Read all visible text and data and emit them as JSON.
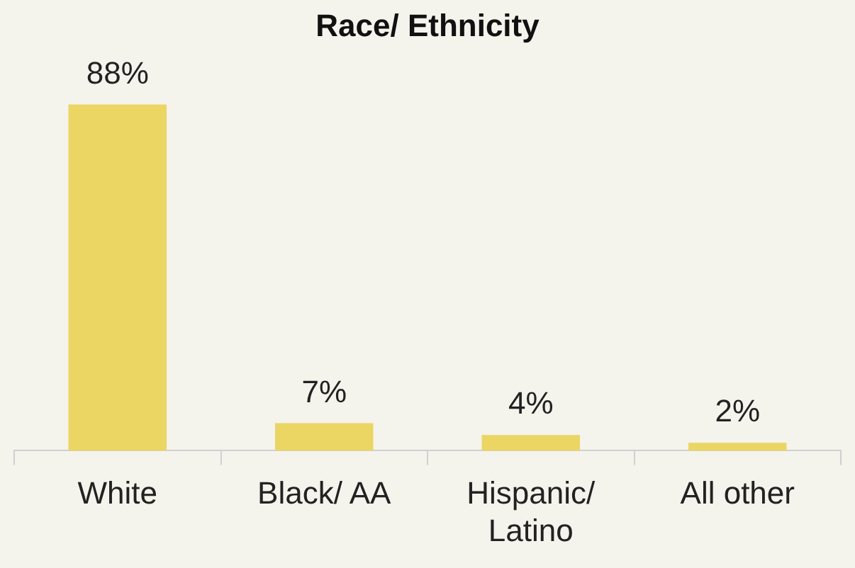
{
  "chart_data": {
    "type": "bar",
    "title": "Race/ Ethnicity",
    "categories": [
      "White",
      "Black/ AA",
      "Hispanic/ Latino",
      "All other"
    ],
    "values": [
      88,
      7,
      4,
      2
    ],
    "value_labels": [
      "88%",
      "7%",
      "4%",
      "2%"
    ],
    "color": "#ebd563",
    "tick_labels": "x",
    "grid": false,
    "legend": false
  }
}
